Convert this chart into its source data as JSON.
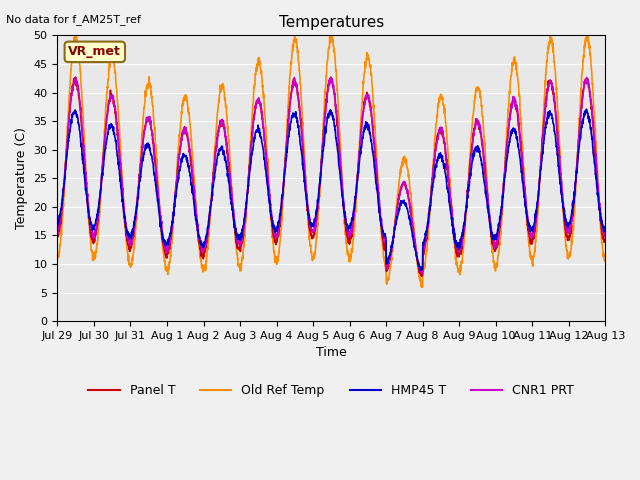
{
  "title": "Temperatures",
  "xlabel": "Time",
  "ylabel": "Temperature (C)",
  "note": "No data for f_AM25T_ref",
  "box_label": "VR_met",
  "ylim": [
    0,
    50
  ],
  "yticks": [
    0,
    5,
    10,
    15,
    20,
    25,
    30,
    35,
    40,
    45,
    50
  ],
  "x_tick_labels": [
    "Jul 29",
    "Jul 30",
    "Jul 31",
    "Aug 1",
    "Aug 2",
    "Aug 3",
    "Aug 4",
    "Aug 5",
    "Aug 6",
    "Aug 7",
    "Aug 8",
    "Aug 9",
    "Aug 10",
    "Aug 11",
    "Aug 12",
    "Aug 13"
  ],
  "series": {
    "Panel T": {
      "color": "#cc0000",
      "linewidth": 1.2
    },
    "Old Ref Temp": {
      "color": "#ff8c00",
      "linewidth": 1.2
    },
    "HMP45 T": {
      "color": "#0000cc",
      "linewidth": 1.2
    },
    "CNR1 PRT": {
      "color": "#cc00cc",
      "linewidth": 1.2
    }
  },
  "bg_color": "#e8e8e8",
  "fig_bg": "#f0f0f0"
}
